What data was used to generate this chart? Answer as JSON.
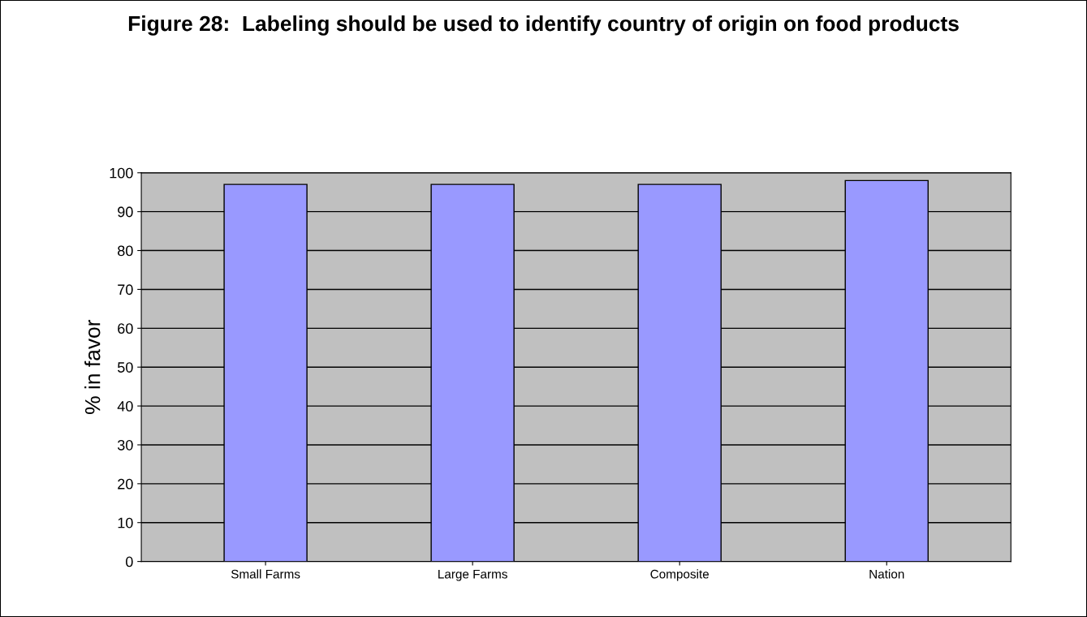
{
  "chart_data": {
    "type": "bar",
    "title": "Figure 28:  Labeling should be used to identify country of origin on food products",
    "ylabel": "% in favor",
    "categories": [
      "Small Farms",
      "Large Farms",
      "Composite",
      "Nation"
    ],
    "values": [
      97,
      97,
      97,
      98
    ],
    "color": "#9999ff",
    "ylim": [
      0,
      100
    ],
    "yticks": [
      0,
      10,
      20,
      30,
      40,
      50,
      60,
      70,
      80,
      90,
      100
    ],
    "grid": "y",
    "legend": false
  }
}
